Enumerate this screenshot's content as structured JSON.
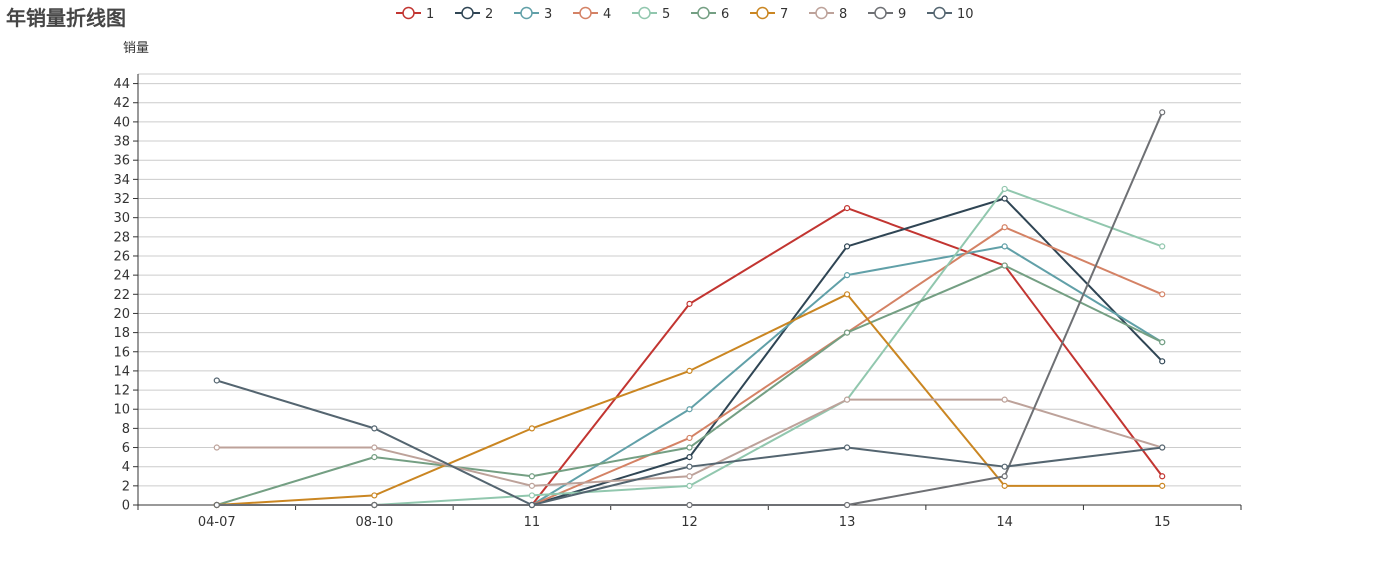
{
  "chart_data": {
    "type": "line",
    "title": "年销量折线图",
    "ylabel": "销量",
    "xlabel": "",
    "categories": [
      "04-07",
      "08-10",
      "11",
      "12",
      "13",
      "14",
      "15"
    ],
    "ylim": [
      0,
      44
    ],
    "ytick_step": 2,
    "grid": true,
    "legend_position": "top-center",
    "series": [
      {
        "name": "1",
        "color": "#c23531",
        "values": [
          0,
          0,
          0,
          21,
          31,
          25,
          3
        ]
      },
      {
        "name": "2",
        "color": "#2f4554",
        "values": [
          0,
          0,
          0,
          5,
          27,
          32,
          15
        ]
      },
      {
        "name": "3",
        "color": "#61a0a8",
        "values": [
          0,
          0,
          0,
          10,
          24,
          27,
          17
        ]
      },
      {
        "name": "4",
        "color": "#d48265",
        "values": [
          0,
          0,
          0,
          7,
          18,
          29,
          22
        ]
      },
      {
        "name": "5",
        "color": "#91c7ae",
        "values": [
          0,
          0,
          1,
          2,
          11,
          33,
          27
        ]
      },
      {
        "name": "6",
        "color": "#749f83",
        "values": [
          0,
          5,
          3,
          6,
          18,
          25,
          17
        ]
      },
      {
        "name": "7",
        "color": "#ca8622",
        "values": [
          0,
          1,
          8,
          14,
          22,
          2,
          2
        ]
      },
      {
        "name": "8",
        "color": "#bda29a",
        "values": [
          6,
          6,
          2,
          3,
          11,
          11,
          6
        ]
      },
      {
        "name": "9",
        "color": "#6e7074",
        "values": [
          0,
          0,
          0,
          0,
          0,
          3,
          41
        ]
      },
      {
        "name": "10",
        "color": "#546570",
        "values": [
          13,
          8,
          0,
          4,
          6,
          4,
          6
        ]
      }
    ]
  }
}
